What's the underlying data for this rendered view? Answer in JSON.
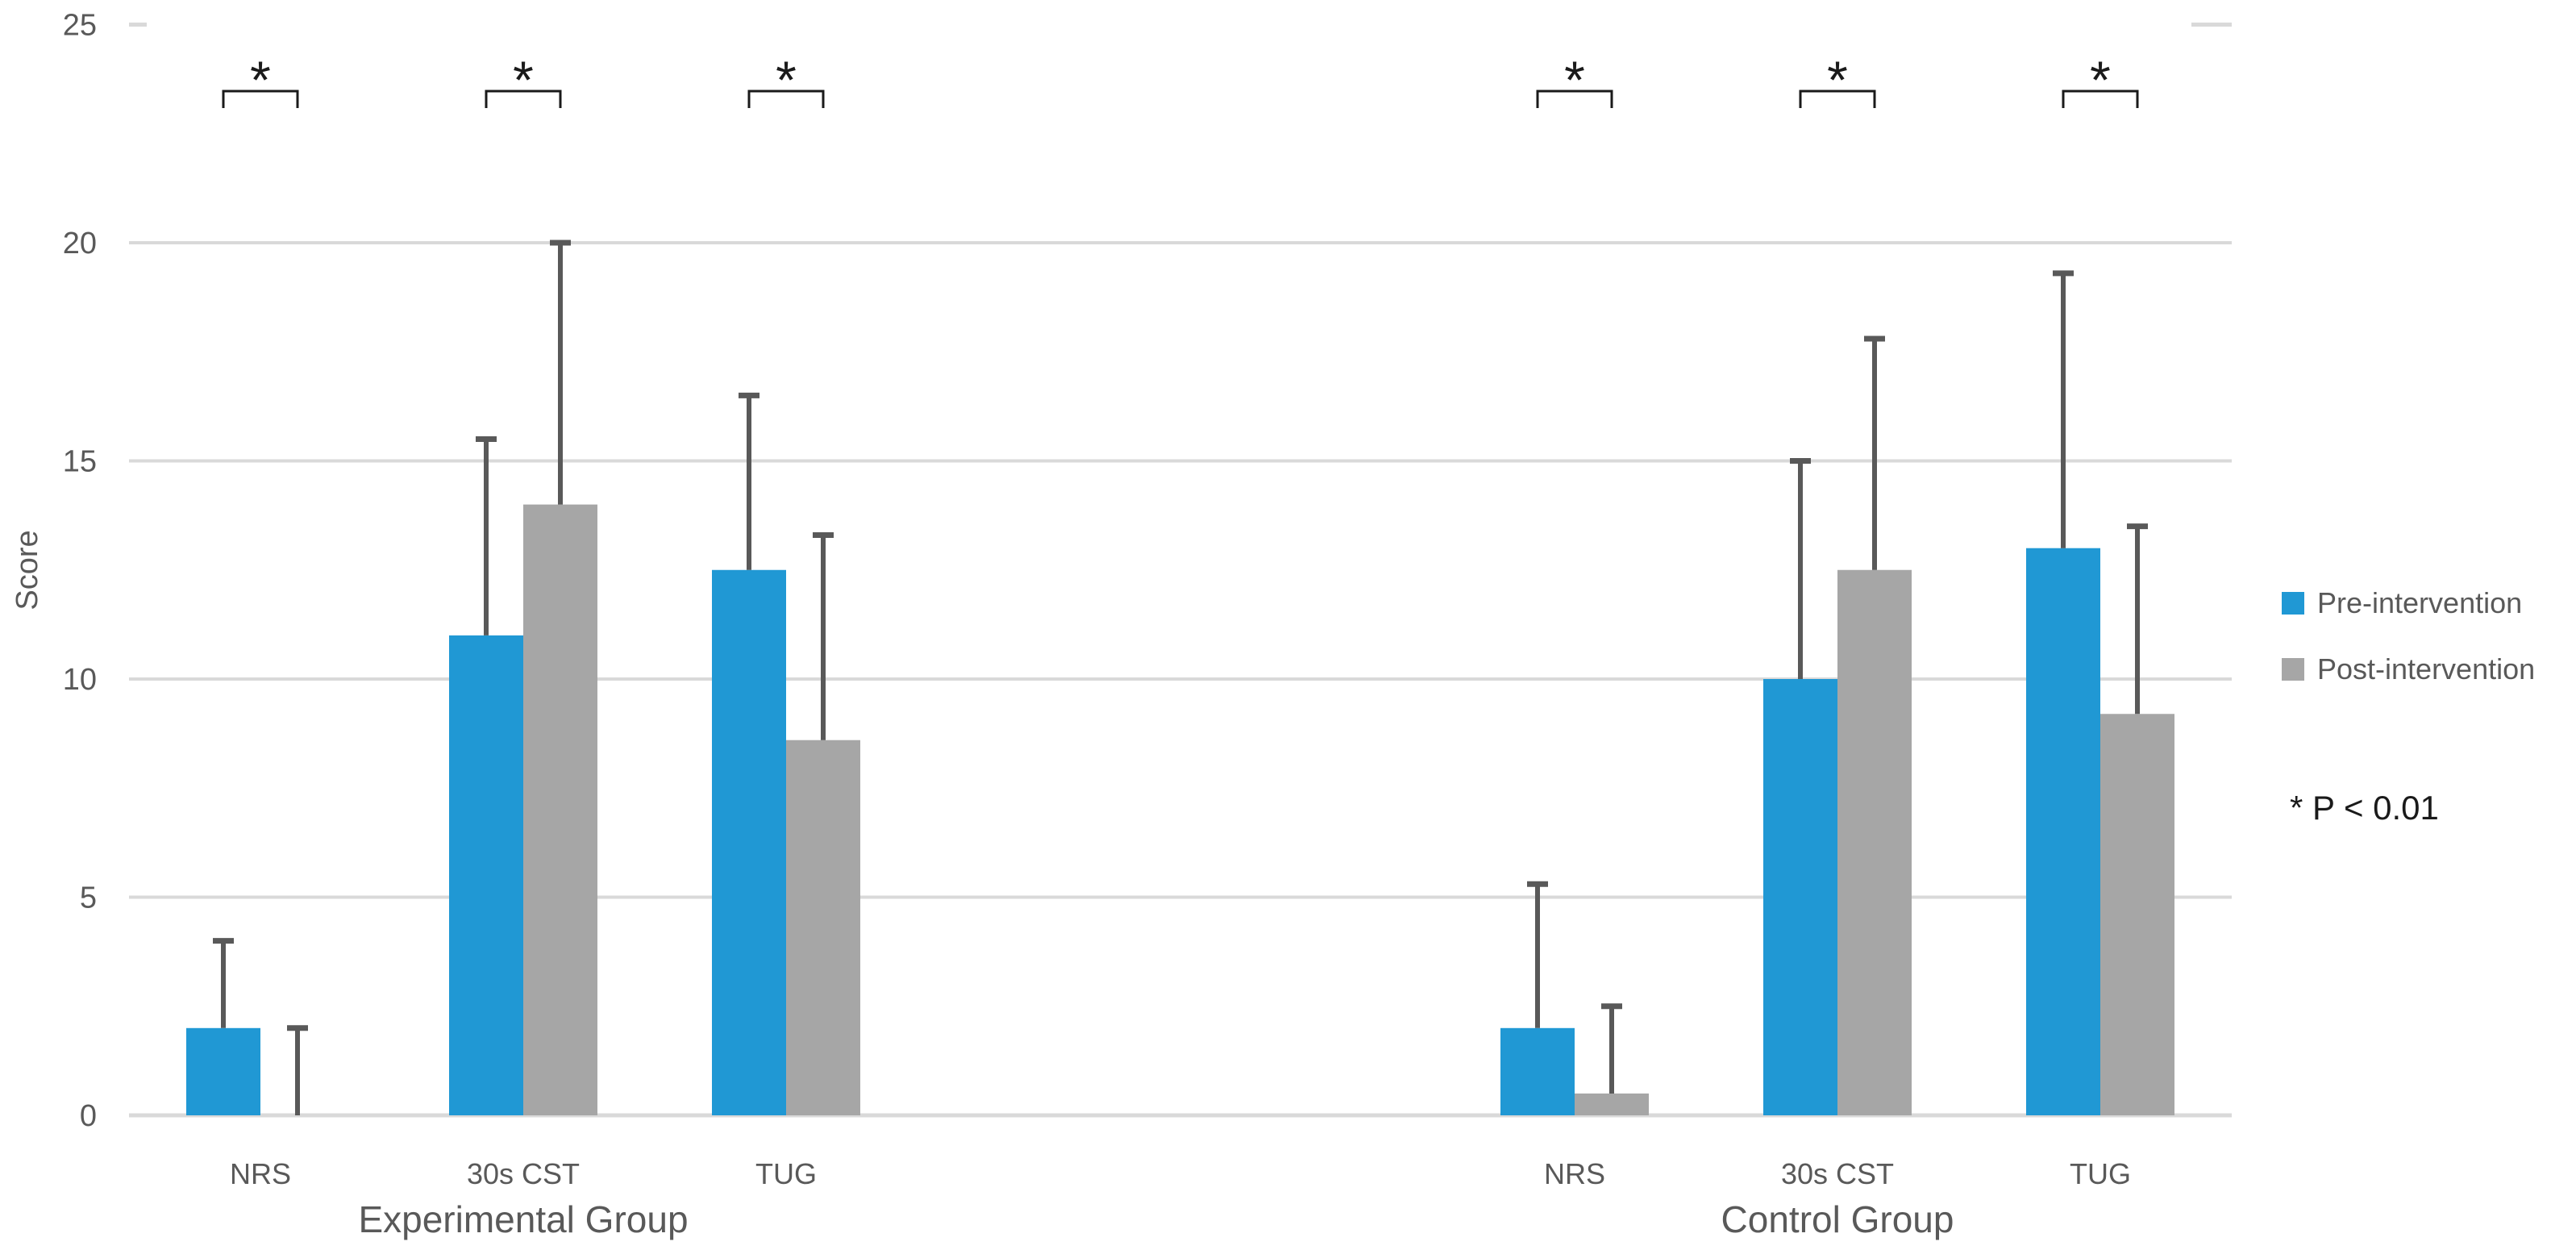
{
  "chart_data": {
    "type": "bar",
    "title": "",
    "xlabel": "",
    "ylabel": "Score",
    "ylim": [
      0,
      25
    ],
    "ytick_step": 5,
    "yticks": [
      "0",
      "5",
      "10",
      "15",
      "20",
      "25"
    ],
    "grid": true,
    "legend_position": "right",
    "legend": [
      {
        "label": "Pre-intervention",
        "color_key": "pre"
      },
      {
        "label": "Post-intervention",
        "color_key": "post"
      }
    ],
    "annotation": "* P < 0.01",
    "sig_marker": "*",
    "groups": [
      {
        "name": "Experimental Group",
        "short": "exp",
        "categories": [
          "NRS",
          "30s CST",
          "TUG"
        ],
        "series": [
          {
            "name": "Pre-intervention",
            "values": [
              2.0,
              11.0,
              12.5
            ],
            "errors_plus": [
              2.0,
              4.5,
              4.0
            ]
          },
          {
            "name": "Post-intervention",
            "values": [
              0.0,
              14.0,
              8.6
            ],
            "errors_plus": [
              2.0,
              6.0,
              4.7
            ]
          }
        ],
        "significance": [
          "*",
          "*",
          "*"
        ]
      },
      {
        "name": "Control Group",
        "short": "ctrl",
        "categories": [
          "NRS",
          "30s CST",
          "TUG"
        ],
        "series": [
          {
            "name": "Pre-intervention",
            "values": [
              2.0,
              10.0,
              13.0
            ],
            "errors_plus": [
              3.3,
              5.0,
              6.3
            ]
          },
          {
            "name": "Post-intervention",
            "values": [
              0.5,
              12.5,
              9.2
            ],
            "errors_plus": [
              2.0,
              5.3,
              4.3
            ]
          }
        ],
        "significance": [
          "*",
          "*",
          "*"
        ]
      }
    ],
    "colors": {
      "pre": "#2098d4",
      "post": "#a6a6a6",
      "error_bar": "#595959",
      "gridline": "#d9d9d9",
      "axis_text": "#595959",
      "annotation_text": "#1a1a1a"
    }
  }
}
